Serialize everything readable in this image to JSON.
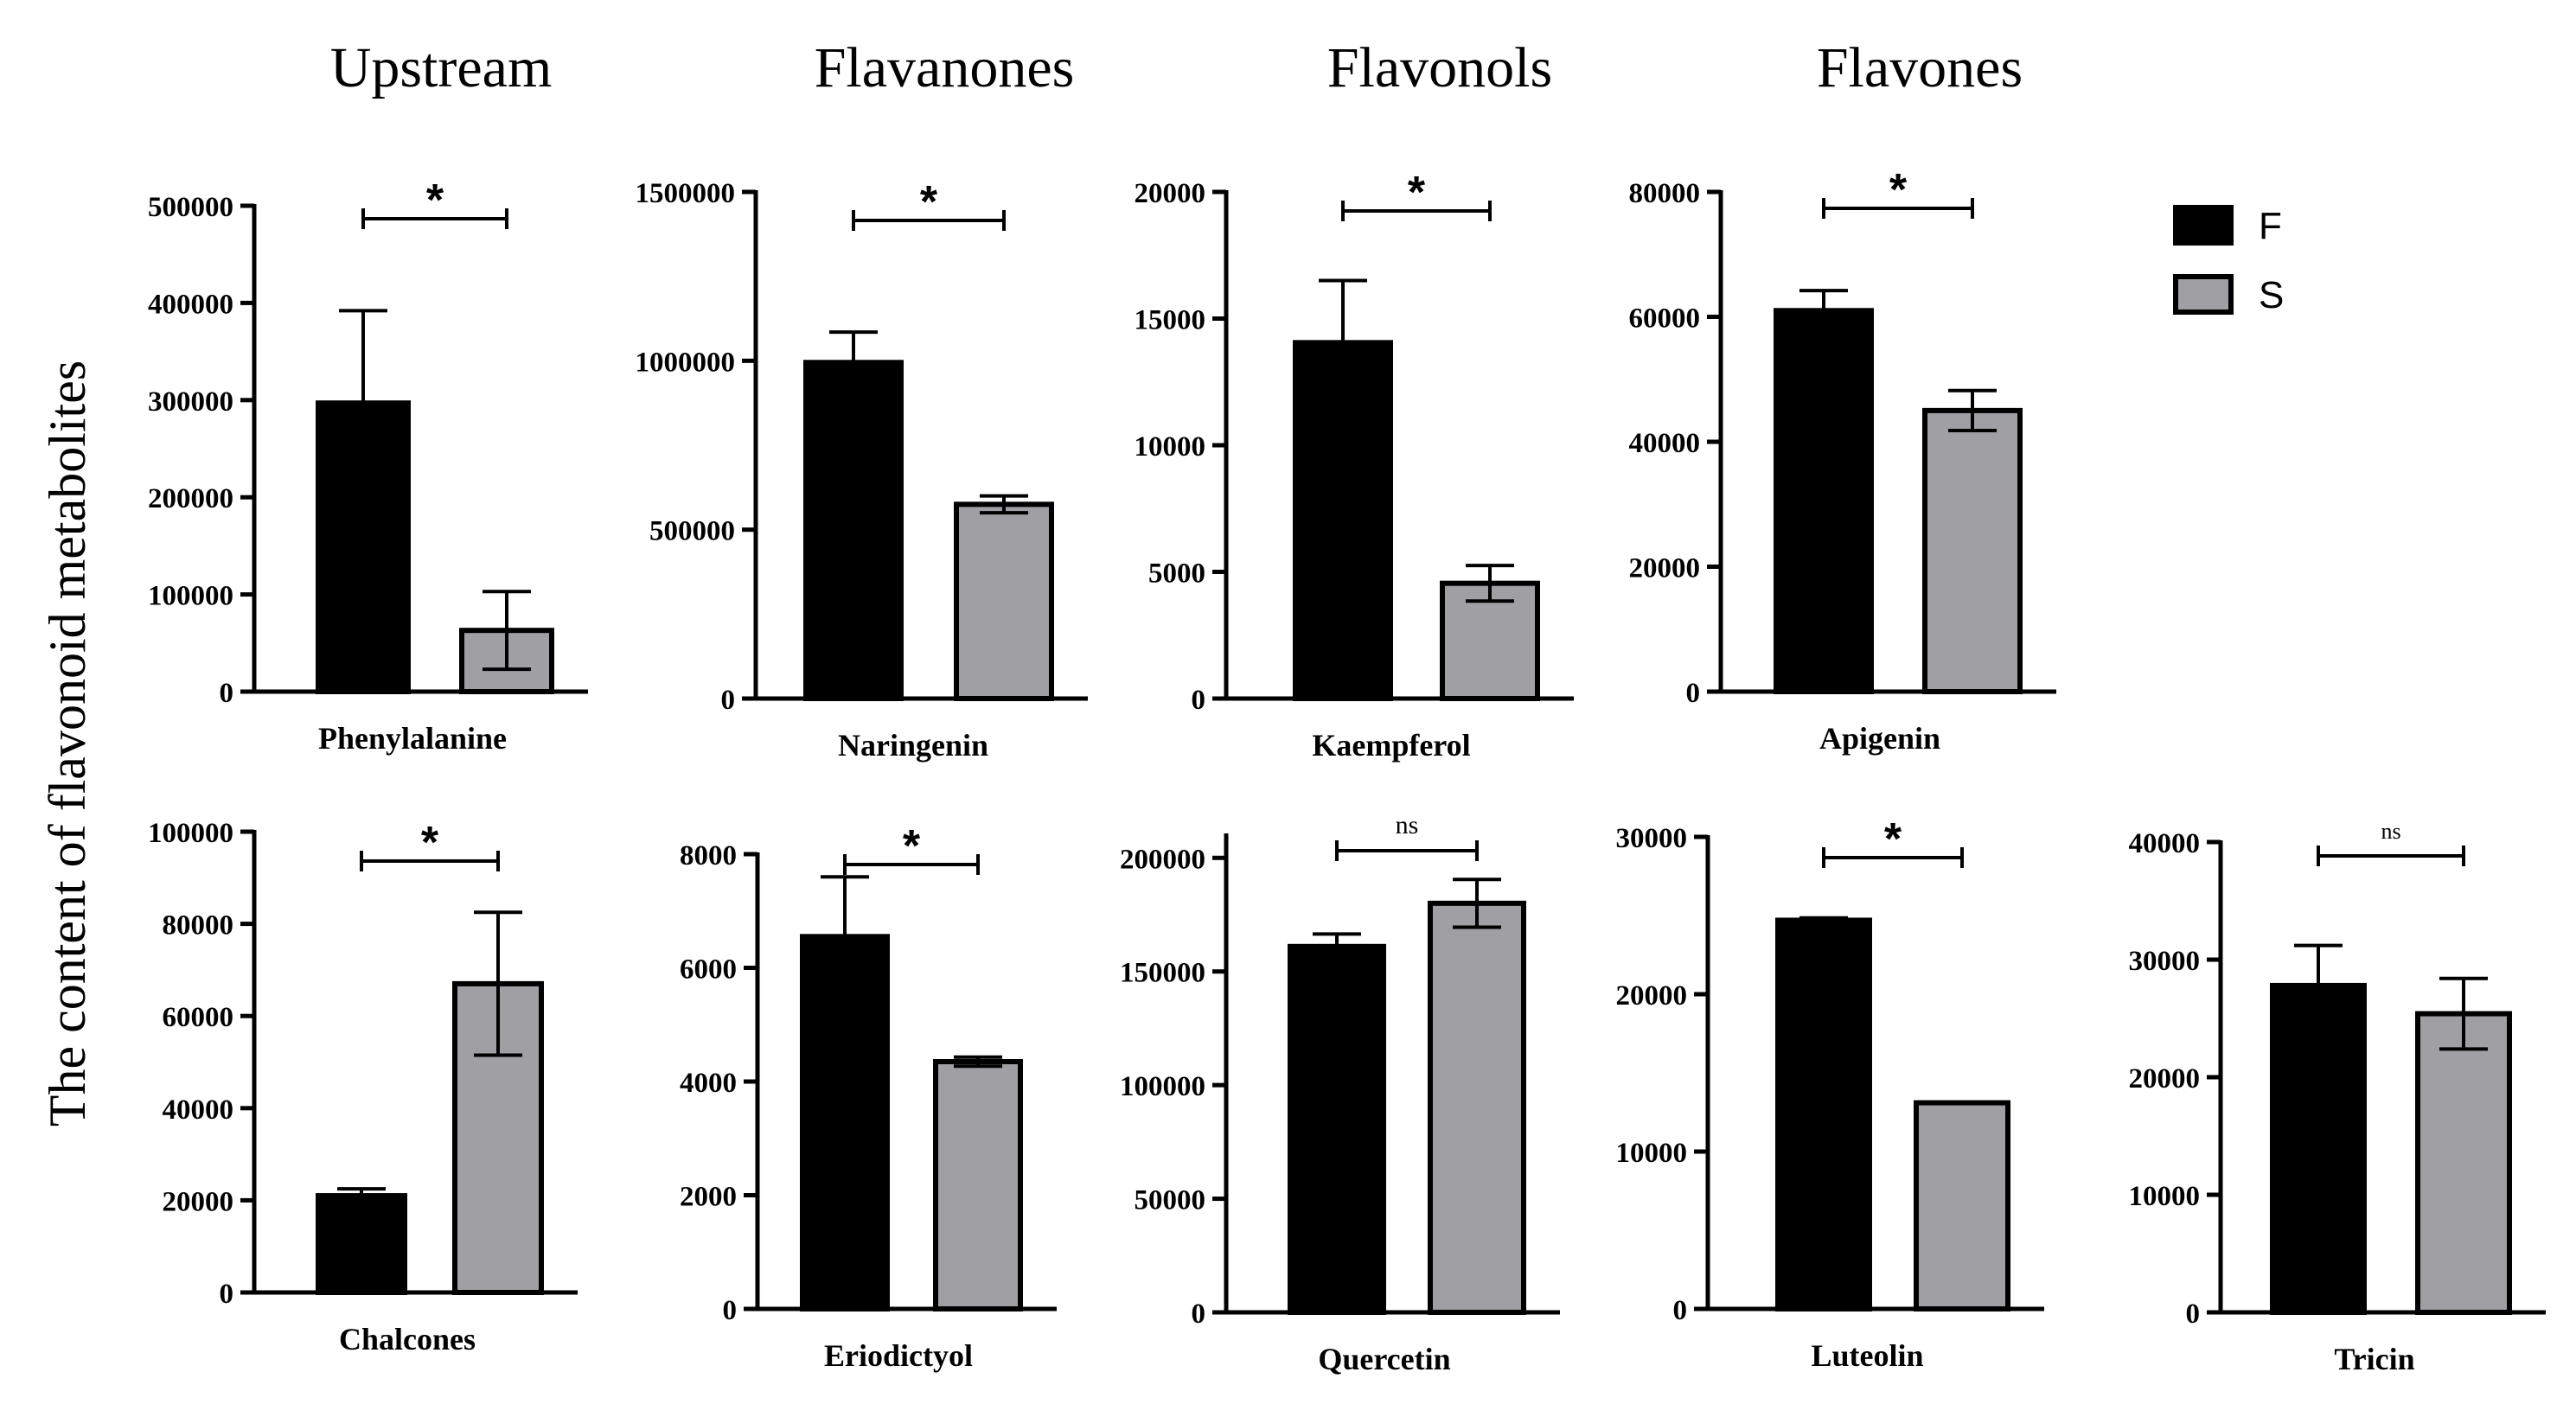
{
  "y_axis_label": "The content of flavonoid metabolites",
  "group_headers": [
    "Upstream",
    "Flavanones",
    "Flavonols",
    "Flavones"
  ],
  "legend": [
    {
      "label": "F",
      "color": "#000000"
    },
    {
      "label": "S",
      "color": "#a0a0a4"
    }
  ],
  "chart_data": [
    {
      "type": "bar",
      "title": "Phenylalanine",
      "group": "Upstream",
      "categories": [
        "F",
        "S"
      ],
      "values": [
        297000,
        63000
      ],
      "errors": [
        95000,
        40000
      ],
      "ylim": [
        0,
        500000
      ],
      "yticks": [
        "0",
        "100000",
        "200000",
        "300000",
        "400000",
        "500000"
      ],
      "yvals": [
        0,
        100000,
        200000,
        300000,
        400000,
        500000
      ],
      "significance": "*"
    },
    {
      "type": "bar",
      "title": "Naringenin",
      "group": "Flavanones",
      "categories": [
        "F",
        "S"
      ],
      "values": [
        995000,
        575000
      ],
      "errors": [
        90000,
        25000
      ],
      "ylim": [
        0,
        1500000
      ],
      "yticks": [
        "0",
        "500000",
        "1000000",
        "1500000"
      ],
      "yvals": [
        0,
        500000,
        1000000,
        1500000
      ],
      "significance": "*"
    },
    {
      "type": "bar",
      "title": "Kaempferol",
      "group": "Flavonols",
      "categories": [
        "F",
        "S"
      ],
      "values": [
        14050,
        4550
      ],
      "errors": [
        2450,
        700
      ],
      "ylim": [
        0,
        20000
      ],
      "yticks": [
        "0",
        "5000",
        "10000",
        "15000",
        "20000"
      ],
      "yvals": [
        0,
        5000,
        10000,
        15000,
        20000
      ],
      "significance": "*"
    },
    {
      "type": "bar",
      "title": "Apigenin",
      "group": "Flavones",
      "categories": [
        "F",
        "S"
      ],
      "values": [
        61000,
        45000
      ],
      "errors": [
        3200,
        3200
      ],
      "ylim": [
        0,
        80000
      ],
      "yticks": [
        "0",
        "20000",
        "40000",
        "60000",
        "80000"
      ],
      "yvals": [
        0,
        20000,
        40000,
        60000,
        80000
      ],
      "significance": "*"
    },
    {
      "type": "bar",
      "title": "Chalcones",
      "group": "Upstream",
      "categories": [
        "F",
        "S"
      ],
      "values": [
        21000,
        67000
      ],
      "errors": [
        1500,
        15500
      ],
      "ylim": [
        0,
        100000
      ],
      "yticks": [
        "0",
        "20000",
        "40000",
        "60000",
        "80000",
        "100000"
      ],
      "yvals": [
        0,
        20000,
        40000,
        60000,
        80000,
        100000
      ],
      "significance": "*"
    },
    {
      "type": "bar",
      "title": "Eriodictyol",
      "group": "Flavanones",
      "categories": [
        "F",
        "S"
      ],
      "values": [
        6550,
        4350
      ],
      "errors": [
        1050,
        80
      ],
      "ylim": [
        0,
        8000
      ],
      "yticks": [
        "0",
        "2000",
        "4000",
        "6000",
        "8000"
      ],
      "yvals": [
        0,
        2000,
        4000,
        6000,
        8000
      ],
      "significance": "*"
    },
    {
      "type": "bar",
      "title": "Quercetin",
      "group": "Flavonols",
      "categories": [
        "F",
        "S"
      ],
      "values": [
        161000,
        180000
      ],
      "errors": [
        5500,
        10500
      ],
      "ylim": [
        0,
        210000
      ],
      "yticks": [
        "0",
        "50000",
        "100000",
        "150000",
        "200000"
      ],
      "yvals": [
        0,
        50000,
        100000,
        150000,
        200000
      ],
      "significance": "ns"
    },
    {
      "type": "bar",
      "title": "Luteolin",
      "group": "Flavones",
      "categories": [
        "F",
        "S"
      ],
      "values": [
        24700,
        13100
      ],
      "errors": [
        150,
        0
      ],
      "ylim": [
        0,
        30000
      ],
      "yticks": [
        "0",
        "10000",
        "20000",
        "30000"
      ],
      "yvals": [
        0,
        10000,
        20000,
        30000
      ],
      "significance": "*"
    },
    {
      "type": "bar",
      "title": "Tricin",
      "group": "Flavones",
      "categories": [
        "F",
        "S"
      ],
      "values": [
        27800,
        25400
      ],
      "errors": [
        3400,
        3000
      ],
      "ylim": [
        0,
        40000
      ],
      "yticks": [
        "0",
        "10000",
        "20000",
        "30000",
        "40000"
      ],
      "yvals": [
        0,
        10000,
        20000,
        30000,
        40000
      ],
      "significance": "ns"
    }
  ]
}
